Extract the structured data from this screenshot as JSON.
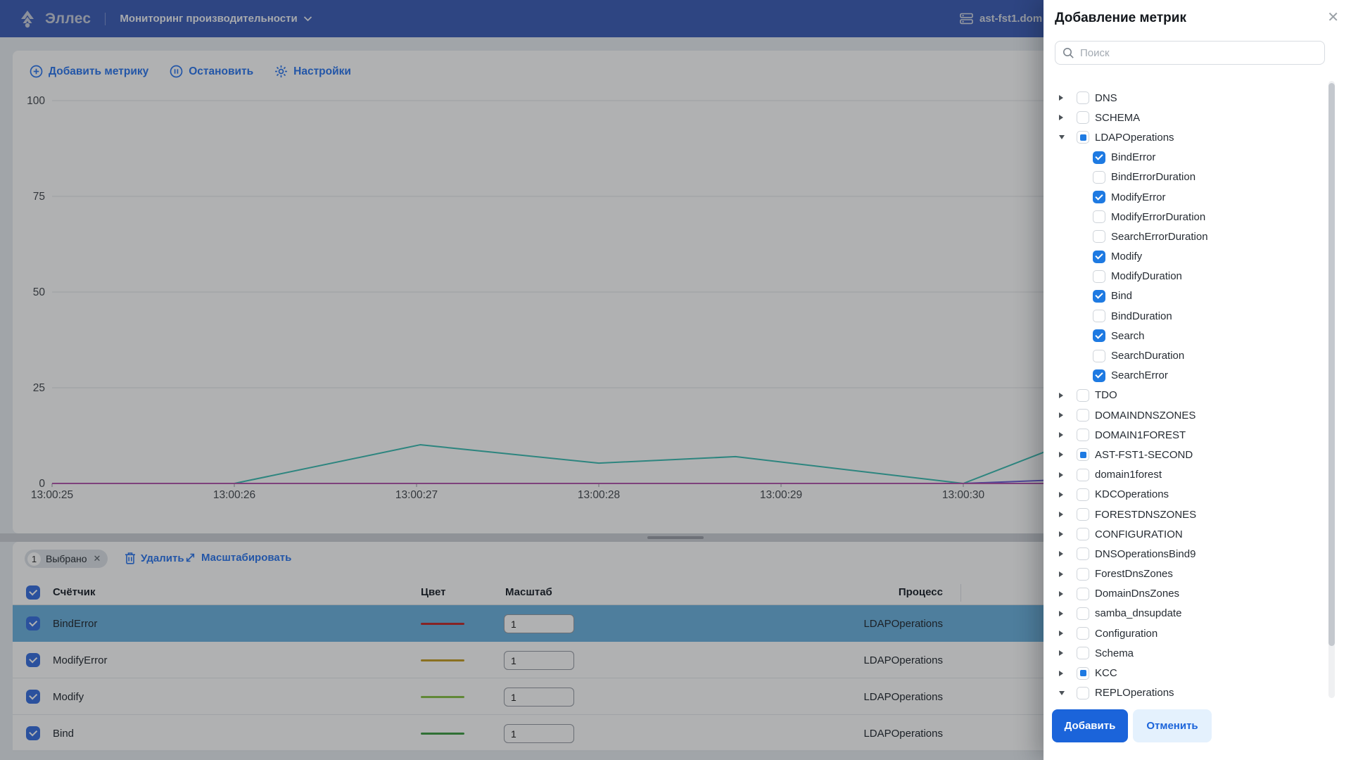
{
  "header": {
    "brand": "Эллес",
    "nav_title": "Мониторинг производительности",
    "server_name": "ast-fst1.dom"
  },
  "toolbar": {
    "add_metric": "Добавить метрику",
    "stop": "Остановить",
    "settings": "Настройки"
  },
  "chart_data": {
    "type": "line",
    "title": "",
    "xlabel": "",
    "ylabel": "",
    "ylim": [
      0,
      100
    ],
    "y_ticks": [
      0,
      25,
      50,
      75,
      100
    ],
    "x_tick_labels": [
      "13:00:25",
      "13:00:26",
      "13:00:27",
      "13:00:28",
      "13:00:29",
      "13:00:30"
    ],
    "x_tick_seconds": [
      0,
      1,
      2,
      3,
      4,
      5
    ],
    "grid": true,
    "legend": "none",
    "series": [
      {
        "name": "teal-line",
        "color": "#3fbfb4",
        "points": [
          [
            0,
            0
          ],
          [
            1,
            0
          ],
          [
            2.02,
            10.1
          ],
          [
            3.0,
            5.3
          ],
          [
            3.75,
            7
          ],
          [
            5.0,
            0
          ],
          [
            5.45,
            8.3
          ]
        ]
      },
      {
        "name": "violet-line",
        "color": "#6f5fd8",
        "points": [
          [
            0,
            0
          ],
          [
            5.0,
            0
          ],
          [
            5.45,
            0.8
          ]
        ]
      },
      {
        "name": "purple-line",
        "color": "#b55bb0",
        "points": [
          [
            0,
            0
          ],
          [
            5.45,
            0
          ]
        ]
      }
    ]
  },
  "selection_bar": {
    "count": "1",
    "label": "Выбрано",
    "delete": "Удалить",
    "zoom": "Масштабировать"
  },
  "table": {
    "headers": {
      "counter": "Счётчик",
      "color": "Цвет",
      "scale": "Масштаб",
      "process": "Процесс"
    },
    "rows": [
      {
        "counter": "BindError",
        "color": "#c22e2e",
        "scale": "1",
        "process": "LDAPOperations",
        "checked": true,
        "selected": true
      },
      {
        "counter": "ModifyError",
        "color": "#c8a028",
        "scale": "1",
        "process": "LDAPOperations",
        "checked": true,
        "selected": false
      },
      {
        "counter": "Modify",
        "color": "#8bc34a",
        "scale": "1",
        "process": "LDAPOperations",
        "checked": true,
        "selected": false
      },
      {
        "counter": "Bind",
        "color": "#43a047",
        "scale": "1",
        "process": "LDAPOperations",
        "checked": true,
        "selected": false
      }
    ]
  },
  "panel": {
    "title": "Добавление метрик",
    "search_placeholder": "Поиск",
    "add_button": "Добавить",
    "cancel_button": "Отменить",
    "tree": [
      {
        "label": "DNS",
        "state": "unchecked",
        "expand": "collapsed",
        "child": false
      },
      {
        "label": "SCHEMA",
        "state": "unchecked",
        "expand": "collapsed",
        "child": false
      },
      {
        "label": "LDAPOperations",
        "state": "indeterminate",
        "expand": "expanded",
        "child": false
      },
      {
        "label": "BindError",
        "state": "checked",
        "child": true
      },
      {
        "label": "BindErrorDuration",
        "state": "unchecked",
        "child": true
      },
      {
        "label": "ModifyError",
        "state": "checked",
        "child": true
      },
      {
        "label": "ModifyErrorDuration",
        "state": "unchecked",
        "child": true
      },
      {
        "label": "SearchErrorDuration",
        "state": "unchecked",
        "child": true
      },
      {
        "label": "Modify",
        "state": "checked",
        "child": true
      },
      {
        "label": "ModifyDuration",
        "state": "unchecked",
        "child": true
      },
      {
        "label": "Bind",
        "state": "checked",
        "child": true
      },
      {
        "label": "BindDuration",
        "state": "unchecked",
        "child": true
      },
      {
        "label": "Search",
        "state": "checked",
        "child": true
      },
      {
        "label": "SearchDuration",
        "state": "unchecked",
        "child": true
      },
      {
        "label": "SearchError",
        "state": "checked",
        "child": true
      },
      {
        "label": "TDO",
        "state": "unchecked",
        "expand": "collapsed",
        "child": false
      },
      {
        "label": "DOMAINDNSZONES",
        "state": "unchecked",
        "expand": "collapsed",
        "child": false
      },
      {
        "label": "DOMAIN1FOREST",
        "state": "unchecked",
        "expand": "collapsed",
        "child": false
      },
      {
        "label": "AST-FST1-SECOND",
        "state": "indeterminate",
        "expand": "collapsed",
        "child": false
      },
      {
        "label": "domain1forest",
        "state": "unchecked",
        "expand": "collapsed",
        "child": false
      },
      {
        "label": "KDCOperations",
        "state": "unchecked",
        "expand": "collapsed",
        "child": false
      },
      {
        "label": "FORESTDNSZONES",
        "state": "unchecked",
        "expand": "collapsed",
        "child": false
      },
      {
        "label": "CONFIGURATION",
        "state": "unchecked",
        "expand": "collapsed",
        "child": false
      },
      {
        "label": "DNSOperationsBind9",
        "state": "unchecked",
        "expand": "collapsed",
        "child": false
      },
      {
        "label": "ForestDnsZones",
        "state": "unchecked",
        "expand": "collapsed",
        "child": false
      },
      {
        "label": "DomainDnsZones",
        "state": "unchecked",
        "expand": "collapsed",
        "child": false
      },
      {
        "label": "samba_dnsupdate",
        "state": "unchecked",
        "expand": "collapsed",
        "child": false
      },
      {
        "label": "Configuration",
        "state": "unchecked",
        "expand": "collapsed",
        "child": false
      },
      {
        "label": "Schema",
        "state": "unchecked",
        "expand": "collapsed",
        "child": false
      },
      {
        "label": "KCC",
        "state": "indeterminate",
        "expand": "collapsed",
        "child": false
      },
      {
        "label": "REPLOperations",
        "state": "unchecked",
        "expand": "expanded",
        "child": false
      }
    ]
  },
  "colors": {
    "header_blue": "#4060b8",
    "accent_blue": "#1b64da",
    "link_blue": "#3079ef",
    "checkbox_blue": "#1e7ae2",
    "selected_row": "#6fb4e0",
    "cancel_bg": "#e4f1fd"
  }
}
